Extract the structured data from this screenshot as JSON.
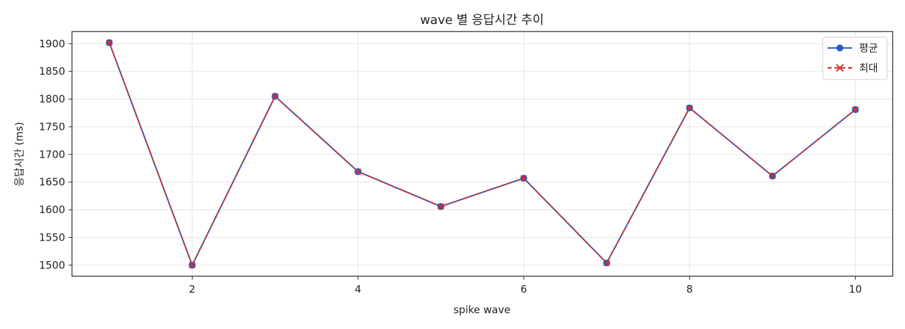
{
  "chart_data": {
    "type": "line",
    "title": "wave 별 응답시간 추이",
    "xlabel": "spike wave",
    "ylabel": "응답시간 (ms)",
    "x": [
      1,
      2,
      3,
      4,
      5,
      6,
      7,
      8,
      9,
      10
    ],
    "xticks": [
      2,
      4,
      6,
      8,
      10
    ],
    "yticks": [
      1500,
      1550,
      1600,
      1650,
      1700,
      1750,
      1800,
      1850,
      1900
    ],
    "xlim": [
      0.55,
      10.45
    ],
    "ylim": [
      1480,
      1922
    ],
    "grid": true,
    "legend_position": "top-right",
    "series": [
      {
        "name": "평균",
        "color": "#1f5fbf",
        "marker": "circle",
        "linestyle": "solid",
        "values": [
          1902,
          1500,
          1805,
          1669,
          1606,
          1657,
          1504,
          1784,
          1661,
          1781
        ]
      },
      {
        "name": "최대",
        "color": "#d03030",
        "marker": "x",
        "linestyle": "dashed",
        "values": [
          1902,
          1500,
          1805,
          1669,
          1606,
          1657,
          1504,
          1784,
          1661,
          1781
        ]
      }
    ]
  }
}
